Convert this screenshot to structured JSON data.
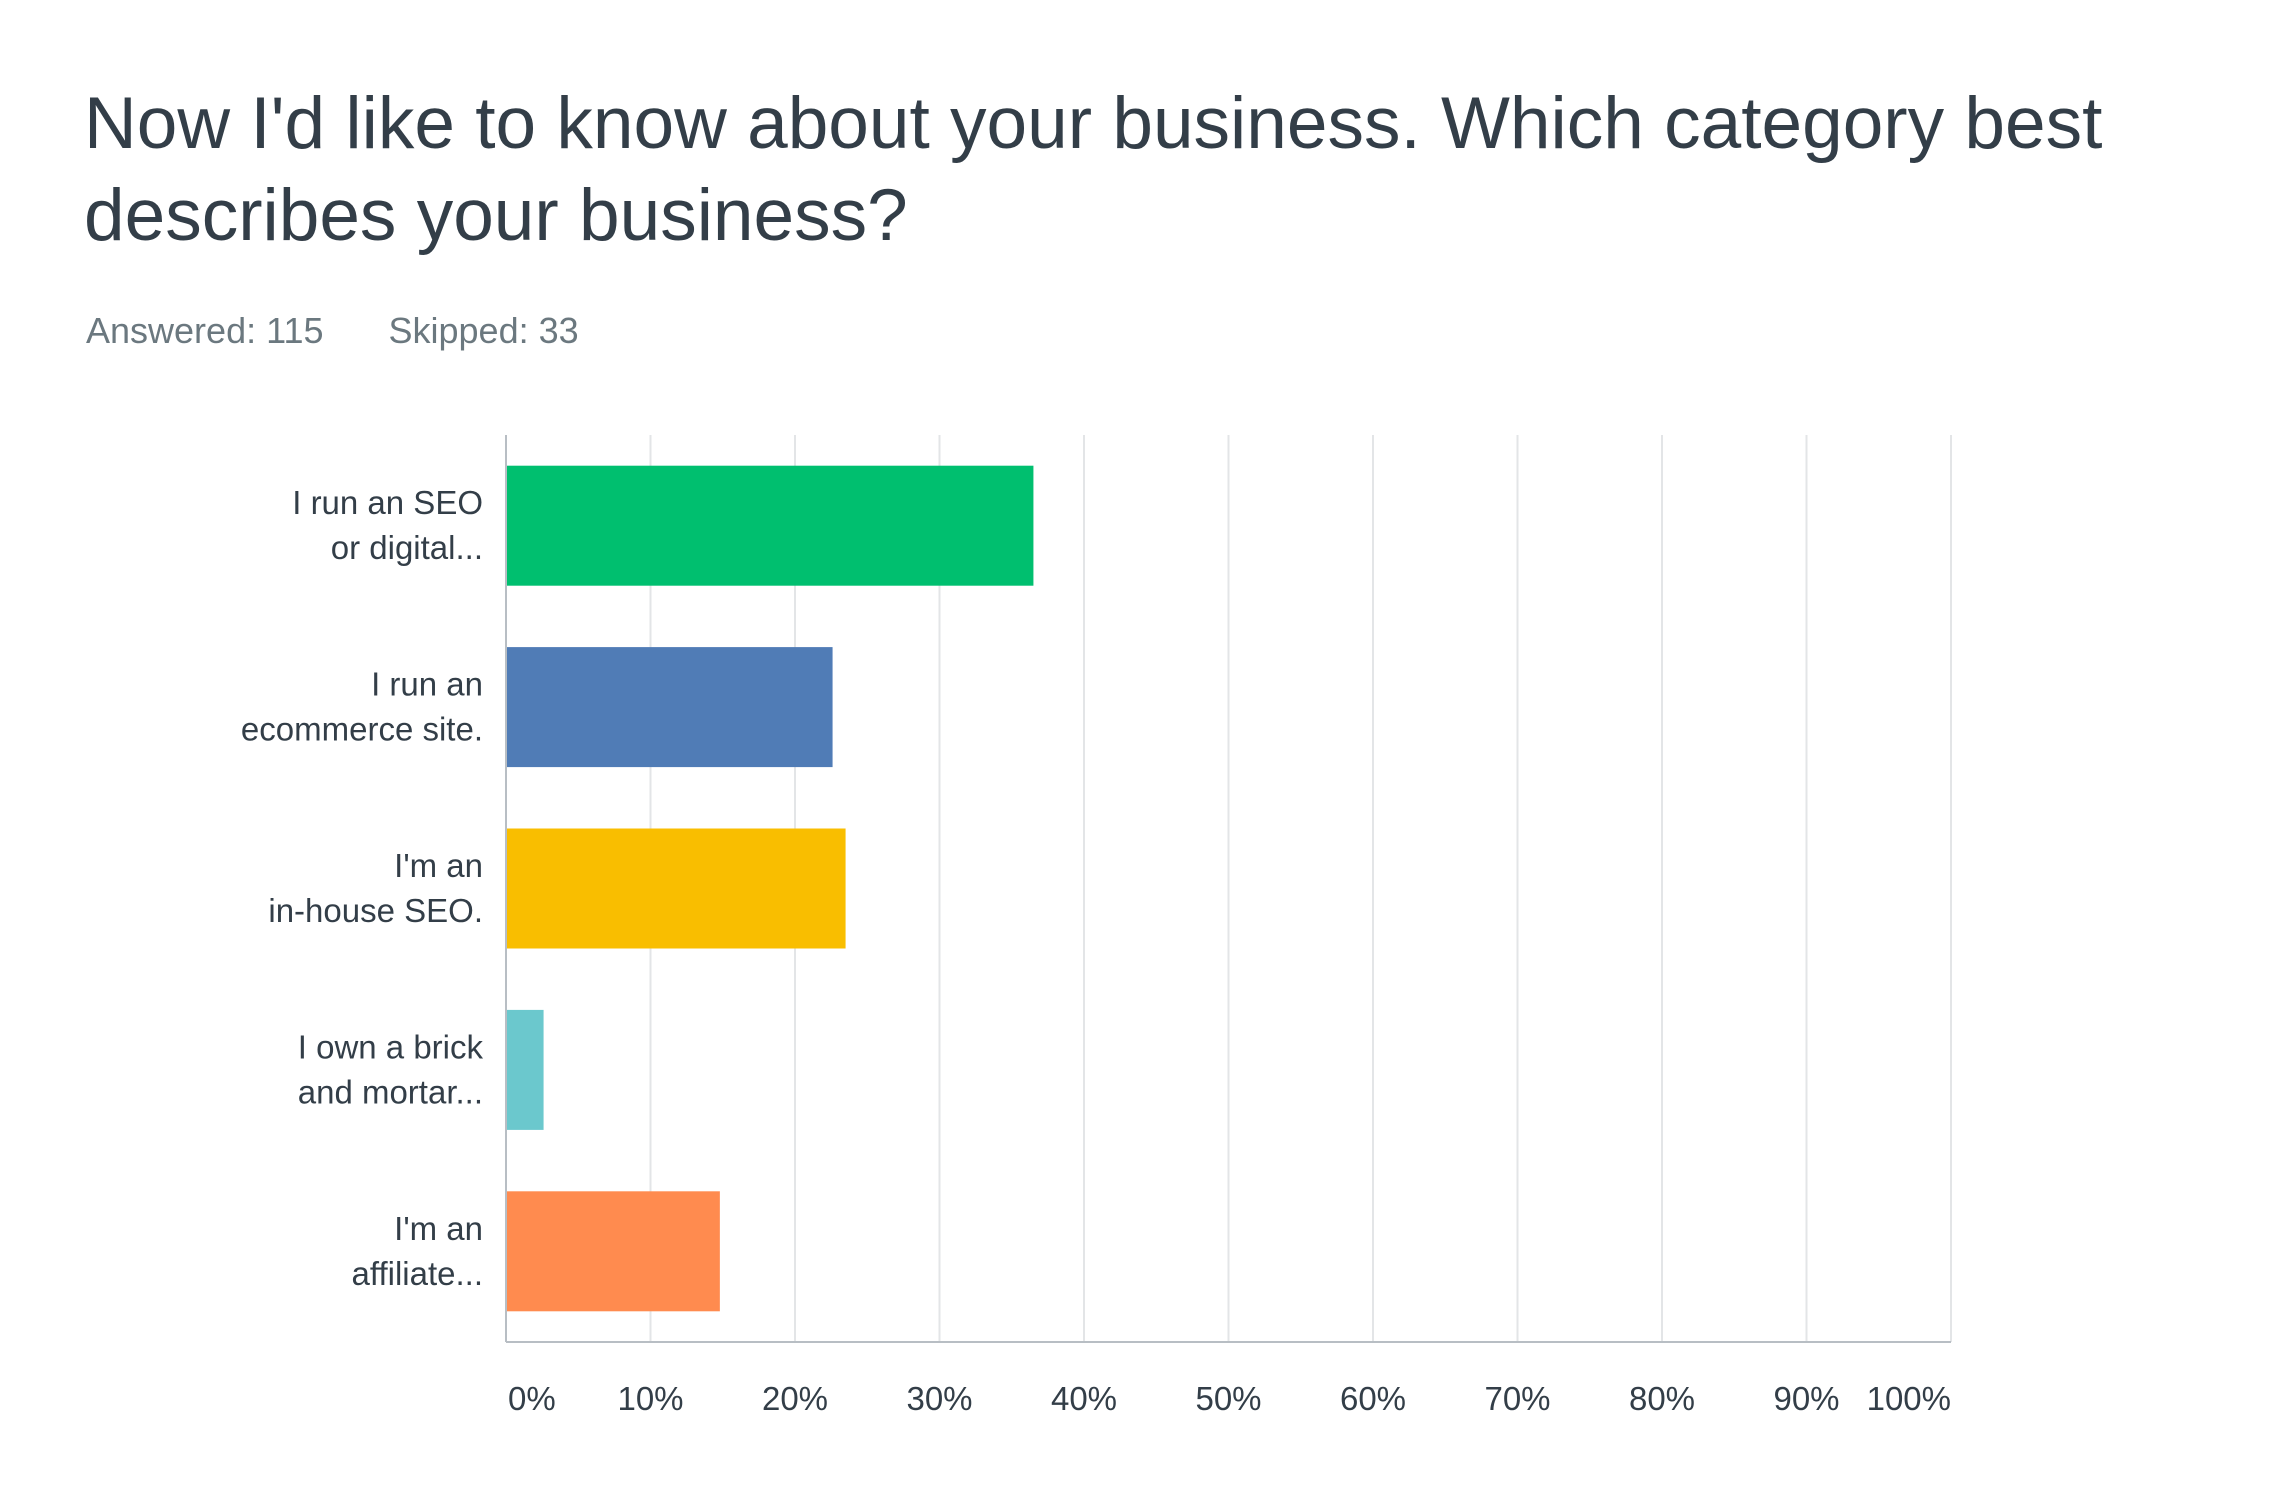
{
  "question": {
    "title": "Now I'd like to know about your business. Which category best describes your business?"
  },
  "stats": {
    "answered": "Answered: 115",
    "skipped": "Skipped: 33"
  },
  "chart_data": {
    "type": "bar",
    "orientation": "horizontal",
    "title": "Now I'd like to know about your business. Which category best describes your business?",
    "categories": [
      [
        "I run an SEO",
        "or digital..."
      ],
      [
        "I run an",
        "ecommerce site."
      ],
      [
        "I'm an",
        "in-house SEO."
      ],
      [
        "I own a brick",
        "and mortar..."
      ],
      [
        "I'm an",
        "affiliate..."
      ]
    ],
    "values": [
      36.5,
      22.6,
      23.5,
      2.6,
      14.8
    ],
    "colors": [
      "#00bf6f",
      "#507cb6",
      "#f9be00",
      "#6bc8cd",
      "#ff8b4f"
    ],
    "xlim": [
      0,
      100
    ],
    "xticks": [
      0,
      10,
      20,
      30,
      40,
      50,
      60,
      70,
      80,
      90,
      100
    ],
    "xtick_labels": [
      "0%",
      "10%",
      "20%",
      "30%",
      "40%",
      "50%",
      "60%",
      "70%",
      "80%",
      "90%",
      "100%"
    ],
    "grid": true,
    "xlabel": "",
    "ylabel": ""
  }
}
